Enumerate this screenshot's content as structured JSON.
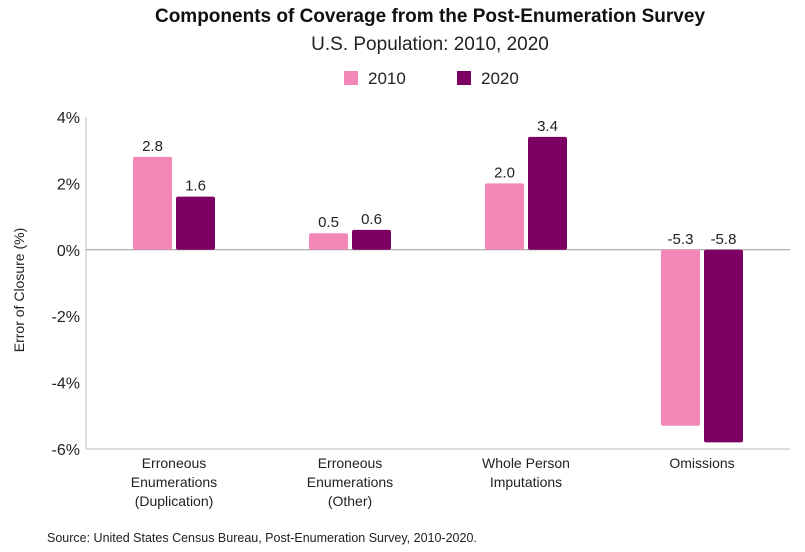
{
  "chart_data": {
    "type": "bar",
    "title": "Components of Coverage from the Post-Enumeration Survey",
    "subtitle": "U.S. Population: 2010, 2020",
    "ylabel": "Error of Closure (%)",
    "xlabel": "",
    "ylim": [
      -6,
      4
    ],
    "yticks": [
      4,
      2,
      0,
      -2,
      -4,
      -6
    ],
    "ytick_labels": [
      "4%",
      "2%",
      "0%",
      "-2%",
      "-4%",
      "-6%"
    ],
    "categories": [
      [
        "Erroneous",
        "Enumerations",
        "(Duplication)"
      ],
      [
        "Erroneous",
        "Enumerations",
        "(Other)"
      ],
      [
        "Whole Person",
        "Imputations"
      ],
      [
        "Omissions"
      ]
    ],
    "series": [
      {
        "name": "2010",
        "color": "#f387b8",
        "values": [
          2.8,
          0.5,
          2.0,
          -5.3
        ],
        "labels": [
          "2.8",
          "0.5",
          "2.0",
          "-5.3"
        ]
      },
      {
        "name": "2020",
        "color": "#7b0062",
        "values": [
          1.6,
          0.6,
          3.4,
          -5.8
        ],
        "labels": [
          "1.6",
          "0.6",
          "3.4",
          "-5.8"
        ]
      }
    ],
    "legend_position": "top-center",
    "grid": false,
    "source": "Source: United States Census Bureau, Post-Enumeration Survey, 2010-2020."
  }
}
